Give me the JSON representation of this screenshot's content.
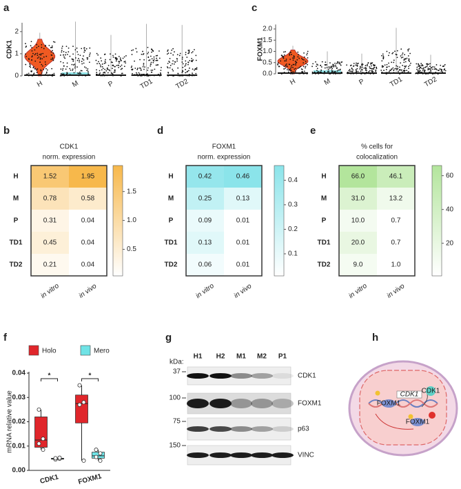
{
  "panel_labels": [
    "a",
    "c",
    "b",
    "d",
    "e",
    "f",
    "g",
    "h"
  ],
  "chart_data": [
    {
      "type": "violin",
      "ylabel": "CDK1",
      "categories": [
        "H",
        "M",
        "P",
        "TD1",
        "TD2"
      ],
      "max": [
        1.95,
        2.45,
        1.85,
        2.35,
        2.3
      ],
      "color": "#f05a22",
      "ylim": [
        0,
        2.4
      ],
      "yticks": [
        0,
        1,
        2
      ]
    },
    {
      "type": "violin",
      "ylabel": "FOXM1",
      "categories": [
        "H",
        "M",
        "P",
        "TD1",
        "TD2"
      ],
      "max": [
        1.25,
        1.0,
        0.9,
        2.05,
        0.85
      ],
      "color": "#f05a22",
      "ylim": [
        0,
        2.2
      ],
      "yticks": [
        {
          "value": 0,
          "label": "0.0"
        },
        {
          "value": 0.5,
          "label": "0.5"
        },
        {
          "value": 1,
          "label": "1.0"
        },
        {
          "value": 1.5,
          "label": "1.5"
        },
        {
          "value": 2,
          "label": "2.0"
        }
      ]
    },
    {
      "type": "heatmap",
      "title": "CDK1",
      "subtitle": "norm. expression",
      "rows": [
        "H",
        "M",
        "P",
        "TD1",
        "TD2"
      ],
      "columns": [
        "in vitro",
        "in vivo"
      ],
      "values": [
        [
          1.52,
          1.95
        ],
        [
          0.78,
          0.58
        ],
        [
          0.31,
          0.04
        ],
        [
          0.45,
          0.04
        ],
        [
          0.21,
          0.04
        ]
      ],
      "color": "#f7b84b",
      "zlim": [
        0.04,
        1.95
      ],
      "zticks": [
        0.5,
        {
          "value": 1,
          "label": "1.0"
        },
        1.5
      ]
    },
    {
      "type": "heatmap",
      "title": "FOXM1",
      "subtitle": "norm. expression",
      "rows": [
        "H",
        "M",
        "P",
        "TD1",
        "TD2"
      ],
      "columns": [
        "in vitro",
        "in vivo"
      ],
      "values": [
        [
          0.42,
          0.46
        ],
        [
          0.25,
          0.13
        ],
        [
          0.09,
          0.01
        ],
        [
          0.13,
          0.01
        ],
        [
          0.06,
          0.01
        ]
      ],
      "color": "#8be4ea",
      "zlim": [
        0.01,
        0.46
      ],
      "zticks": [
        0.1,
        0.2,
        0.3,
        0.4
      ]
    },
    {
      "type": "heatmap",
      "title": "% cells for",
      "subtitle": "colocalization",
      "rows": [
        "H",
        "M",
        "P",
        "TD1",
        "TD2"
      ],
      "columns": [
        "in vitro",
        "in vivo"
      ],
      "values": [
        [
          66,
          46.1
        ],
        [
          31,
          13.2
        ],
        [
          10,
          0.7
        ],
        [
          20,
          0.7
        ],
        [
          9,
          1
        ]
      ],
      "value_labels": [
        [
          "66.0",
          "46.1"
        ],
        [
          "31.0",
          "13.2"
        ],
        [
          "10.0",
          "0.7"
        ],
        [
          "20.0",
          "0.7"
        ],
        [
          "9.0",
          "1.0"
        ]
      ],
      "color": "#b3e59c",
      "zlim": [
        0.7,
        66
      ],
      "zticks": [
        20,
        40,
        60
      ]
    },
    {
      "type": "box",
      "ylabel": "mRNA relative value",
      "categories": [
        "CDK1",
        "FOXM1"
      ],
      "series": [
        {
          "name": "Holo",
          "color": "#e0262b",
          "min": [
            0.0085,
            0.004
          ],
          "q1": [
            0.0095,
            0.0195
          ],
          "median": [
            0.0125,
            0.0275
          ],
          "q3": [
            0.022,
            0.031
          ],
          "max": [
            0.025,
            0.035
          ],
          "points": [
            [
              0.025,
              0.013,
              0.011,
              0.0085
            ],
            [
              0.035,
              0.028,
              0.027,
              0.004
            ]
          ]
        },
        {
          "name": "Mero",
          "color": "#6fe3e6",
          "min": [
            0.0045,
            0.004
          ],
          "q1": [
            0.0046,
            0.005
          ],
          "median": [
            0.0048,
            0.006
          ],
          "q3": [
            0.005,
            0.0075
          ],
          "max": [
            0.0052,
            0.0085
          ],
          "points": [
            [
              0.0045,
              0.0048,
              0.005,
              0.0052
            ],
            [
              0.0085,
              0.007,
              0.0055,
              0.004
            ]
          ]
        }
      ],
      "ylim": [
        0,
        0.04
      ],
      "yticks": [
        {
          "value": 0,
          "label": "0.00"
        },
        {
          "value": 0.01,
          "label": "0.01"
        },
        {
          "value": 0.02,
          "label": "0.02"
        },
        {
          "value": 0.03,
          "label": "0.03"
        },
        {
          "value": 0.04,
          "label": "0.04"
        }
      ],
      "annotations": [
        "*",
        "*"
      ]
    }
  ],
  "western_blot": {
    "unit": "kDa:",
    "lanes": [
      "H1",
      "H2",
      "M1",
      "M2",
      "P1"
    ],
    "markers": [
      37,
      100,
      75,
      150
    ],
    "proteins": [
      "CDK1",
      "FOXM1",
      "p63",
      "VINC"
    ]
  },
  "diagram": {
    "labels": [
      "CDK1",
      "FOXM1",
      "CDK1",
      "FOXM1"
    ]
  }
}
